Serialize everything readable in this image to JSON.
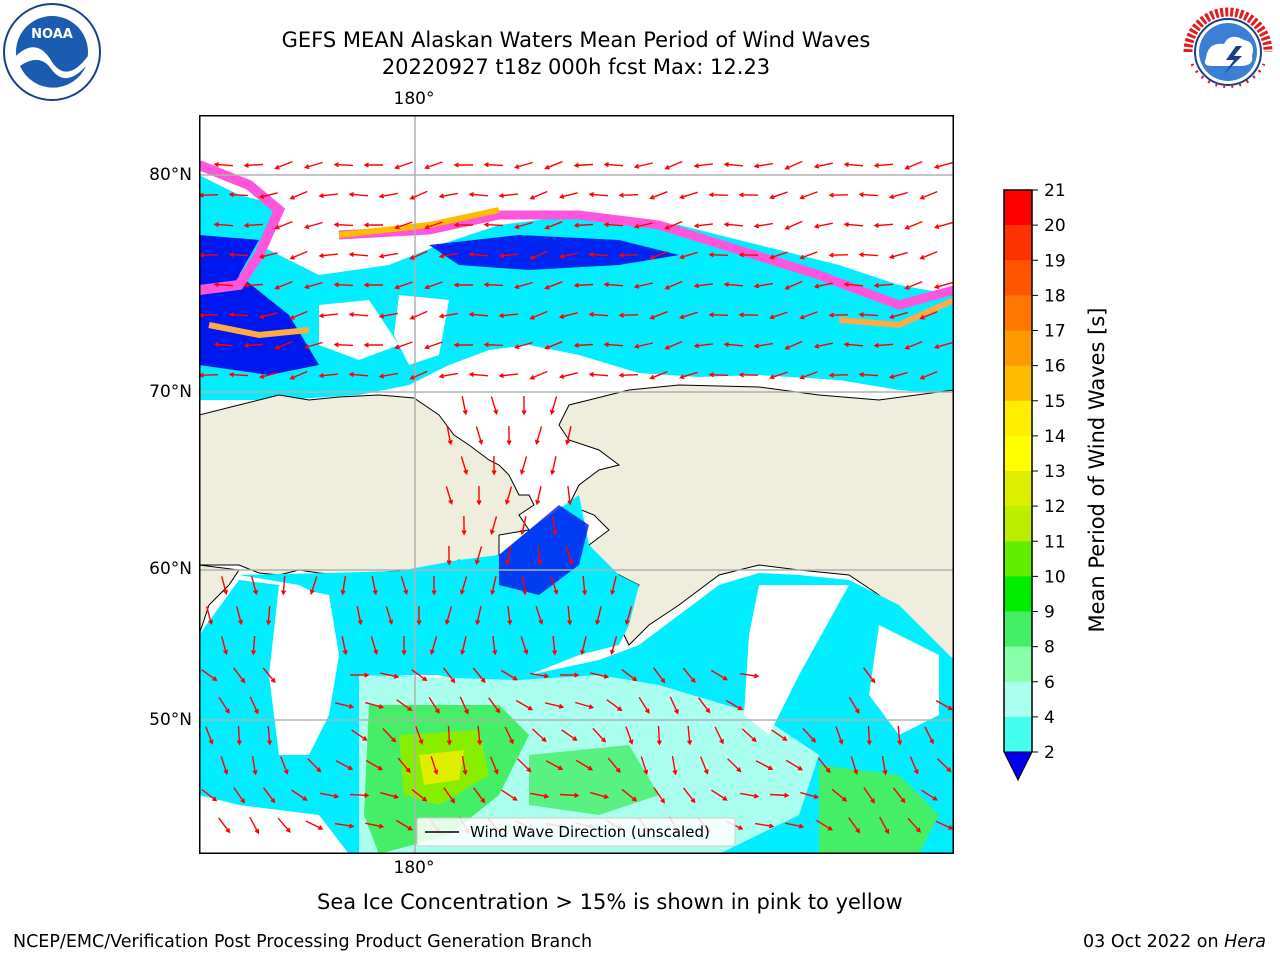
{
  "title_line1": "GEFS MEAN Alaskan Waters Mean Period of Wind Waves",
  "title_line2": "20220927 t18z 000h fcst   Max: 12.23",
  "axes": {
    "lat_labels": [
      "80°N",
      "70°N",
      "60°N",
      "50°N"
    ],
    "lon_label_top": "180°",
    "lon_label_bottom": "180°"
  },
  "legend": {
    "arrow_label": "Wind Wave Direction (unscaled)"
  },
  "colorbar": {
    "label": "Mean Period of Wind Waves [s]",
    "ticks": [
      "21",
      "20",
      "19",
      "18",
      "17",
      "16",
      "15",
      "14",
      "13",
      "12",
      "11",
      "10",
      "9",
      "8",
      "6",
      "4",
      "2"
    ],
    "colors": [
      "#ff0000",
      "#ff3300",
      "#ff5500",
      "#ff7700",
      "#ff9900",
      "#ffbb00",
      "#ffee00",
      "#ffff00",
      "#ddee00",
      "#bbee00",
      "#66ee00",
      "#00ee00",
      "#44ee66",
      "#88ffaa",
      "#aaffee",
      "#44ffee",
      "#00eeff",
      "#0088ff",
      "#0000ee"
    ]
  },
  "sea_ice_note": "Sea Ice Concentration > 15% is shown in pink to yellow",
  "footer_left": "NCEP/EMC/Verification Post Processing Product Generation Branch",
  "footer_date": "03 Oct 2022 on ",
  "footer_host": "Hera",
  "logos": {
    "left": "noaa-logo",
    "right": "nws-logo"
  }
}
